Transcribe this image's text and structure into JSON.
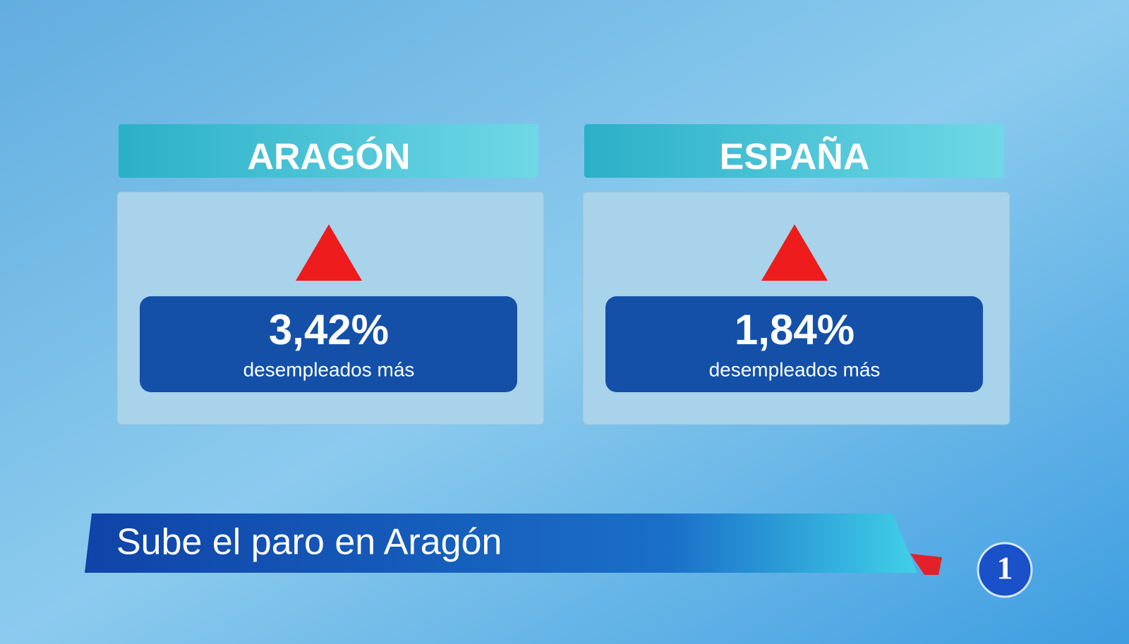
{
  "panels": [
    {
      "region": "ARAGÓN",
      "value": "3,42%",
      "caption": "desempleados más"
    },
    {
      "region": "ESPAÑA",
      "value": "1,84%",
      "caption": "desempleados más"
    }
  ],
  "headline": "Sube el paro en Aragón",
  "logo": "1"
}
